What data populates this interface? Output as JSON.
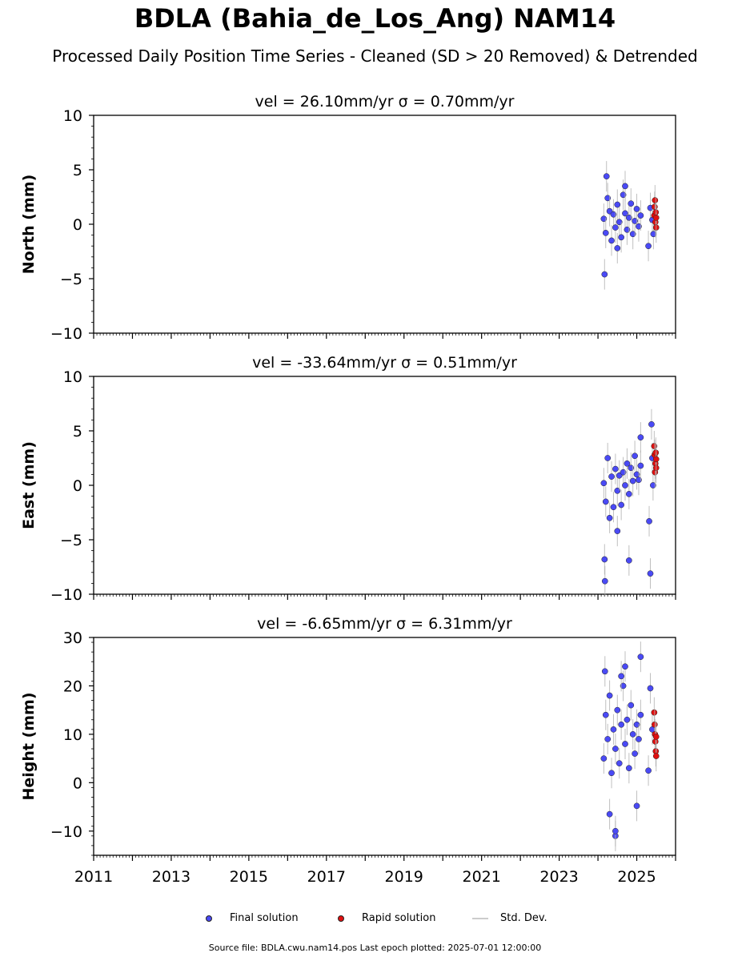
{
  "title": "BDLA (Bahia_de_Los_Ang) NAM14",
  "subtitle": "Processed Daily Position Time Series - Cleaned (SD > 20 Removed) & Detrended",
  "legend": {
    "final": "Final solution",
    "rapid": "Rapid solution",
    "std": "Std. Dev."
  },
  "footer": "Source file: BDLA.cwu.nam14.pos  Last epoch plotted: 2025-07-01 12:00:00",
  "colors": {
    "final": "#4a4af5",
    "rapid": "#e01010",
    "std": "#b0b0b0"
  },
  "chart_data": [
    {
      "type": "scatter",
      "title": "vel = 26.10mm/yr   σ = 0.70mm/yr",
      "ylabel": "North (mm)",
      "xlim": [
        2011,
        2026
      ],
      "ylim": [
        -10,
        10
      ],
      "yticks": [
        -10,
        -5,
        0,
        5,
        10
      ],
      "series": [
        {
          "name": "Final solution",
          "points": [
            [
              2024.15,
              0.5
            ],
            [
              2024.2,
              -0.8
            ],
            [
              2024.25,
              2.4
            ],
            [
              2024.3,
              1.2
            ],
            [
              2024.35,
              -1.5
            ],
            [
              2024.4,
              0.9
            ],
            [
              2024.45,
              -0.3
            ],
            [
              2024.5,
              1.8
            ],
            [
              2024.55,
              0.2
            ],
            [
              2024.6,
              -1.2
            ],
            [
              2024.65,
              2.7
            ],
            [
              2024.7,
              1.0
            ],
            [
              2024.75,
              -0.5
            ],
            [
              2024.8,
              0.6
            ],
            [
              2024.85,
              1.9
            ],
            [
              2024.9,
              -0.9
            ],
            [
              2024.95,
              0.3
            ],
            [
              2025.0,
              1.4
            ],
            [
              2025.05,
              -0.2
            ],
            [
              2025.1,
              0.8
            ],
            [
              2024.17,
              -4.6
            ],
            [
              2024.22,
              4.4
            ],
            [
              2024.5,
              -2.2
            ],
            [
              2024.7,
              3.5
            ],
            [
              2025.3,
              -2.0
            ],
            [
              2025.35,
              1.5
            ],
            [
              2025.4,
              0.4
            ],
            [
              2025.43,
              -0.9
            ]
          ]
        },
        {
          "name": "Rapid solution",
          "points": [
            [
              2025.45,
              0.8
            ],
            [
              2025.46,
              1.6
            ],
            [
              2025.47,
              2.2
            ],
            [
              2025.48,
              0.2
            ],
            [
              2025.49,
              1.1
            ],
            [
              2025.5,
              -0.3
            ],
            [
              2025.5,
              0.6
            ]
          ]
        }
      ]
    },
    {
      "type": "scatter",
      "title": "vel = -33.64mm/yr   σ = 0.51mm/yr",
      "ylabel": "East (mm)",
      "xlim": [
        2011,
        2026
      ],
      "ylim": [
        -10,
        10
      ],
      "yticks": [
        -10,
        -5,
        0,
        5,
        10
      ],
      "series": [
        {
          "name": "Final solution",
          "points": [
            [
              2024.15,
              0.2
            ],
            [
              2024.2,
              -1.5
            ],
            [
              2024.25,
              2.5
            ],
            [
              2024.3,
              -3.0
            ],
            [
              2024.35,
              0.8
            ],
            [
              2024.4,
              -2.0
            ],
            [
              2024.45,
              1.5
            ],
            [
              2024.5,
              -0.5
            ],
            [
              2024.55,
              0.9
            ],
            [
              2024.6,
              -1.8
            ],
            [
              2024.65,
              1.2
            ],
            [
              2024.7,
              0.0
            ],
            [
              2024.75,
              2.0
            ],
            [
              2024.8,
              -0.8
            ],
            [
              2024.85,
              1.6
            ],
            [
              2024.9,
              0.4
            ],
            [
              2024.95,
              2.7
            ],
            [
              2025.0,
              1.0
            ],
            [
              2025.05,
              0.5
            ],
            [
              2025.1,
              1.8
            ],
            [
              2024.17,
              -6.8
            ],
            [
              2024.18,
              -8.8
            ],
            [
              2024.5,
              -4.2
            ],
            [
              2024.8,
              -6.9
            ],
            [
              2025.1,
              4.4
            ],
            [
              2025.32,
              -3.3
            ],
            [
              2025.35,
              -8.1
            ],
            [
              2025.38,
              5.6
            ],
            [
              2025.4,
              2.5
            ],
            [
              2025.42,
              0.0
            ]
          ]
        },
        {
          "name": "Rapid solution",
          "points": [
            [
              2025.45,
              3.6
            ],
            [
              2025.46,
              2.8
            ],
            [
              2025.47,
              1.2
            ],
            [
              2025.48,
              2.0
            ],
            [
              2025.49,
              3.0
            ],
            [
              2025.5,
              1.6
            ],
            [
              2025.5,
              2.4
            ]
          ]
        }
      ]
    },
    {
      "type": "scatter",
      "title": "vel = -6.65mm/yr   σ = 6.31mm/yr",
      "ylabel": "Height (mm)",
      "xlim": [
        2011,
        2026
      ],
      "ylim": [
        -15,
        30
      ],
      "yticks": [
        -10,
        0,
        10,
        20,
        30
      ],
      "xticks": [
        "2011",
        "2013",
        "2015",
        "2017",
        "2019",
        "2021",
        "2023",
        "2025"
      ],
      "series": [
        {
          "name": "Final solution",
          "points": [
            [
              2024.15,
              5.0
            ],
            [
              2024.2,
              14.0
            ],
            [
              2024.25,
              9.0
            ],
            [
              2024.3,
              18.0
            ],
            [
              2024.35,
              2.0
            ],
            [
              2024.4,
              11.0
            ],
            [
              2024.45,
              7.0
            ],
            [
              2024.5,
              15.0
            ],
            [
              2024.55,
              4.0
            ],
            [
              2024.6,
              12.0
            ],
            [
              2024.65,
              20.0
            ],
            [
              2024.7,
              8.0
            ],
            [
              2024.75,
              13.0
            ],
            [
              2024.8,
              3.0
            ],
            [
              2024.85,
              16.0
            ],
            [
              2024.9,
              10.0
            ],
            [
              2024.95,
              6.0
            ],
            [
              2025.0,
              12.0
            ],
            [
              2025.05,
              9.0
            ],
            [
              2025.1,
              14.0
            ],
            [
              2024.18,
              23.0
            ],
            [
              2024.3,
              -6.5
            ],
            [
              2024.45,
              -11.0
            ],
            [
              2024.45,
              -10.0
            ],
            [
              2024.6,
              22.0
            ],
            [
              2024.7,
              24.0
            ],
            [
              2025.0,
              -4.8
            ],
            [
              2025.1,
              26.0
            ],
            [
              2025.3,
              2.5
            ],
            [
              2025.35,
              19.5
            ],
            [
              2025.4,
              11.0
            ]
          ]
        },
        {
          "name": "Rapid solution",
          "points": [
            [
              2025.45,
              14.5
            ],
            [
              2025.46,
              12.0
            ],
            [
              2025.47,
              10.0
            ],
            [
              2025.48,
              8.5
            ],
            [
              2025.49,
              6.5
            ],
            [
              2025.5,
              5.5
            ],
            [
              2025.5,
              9.5
            ]
          ]
        }
      ]
    }
  ]
}
